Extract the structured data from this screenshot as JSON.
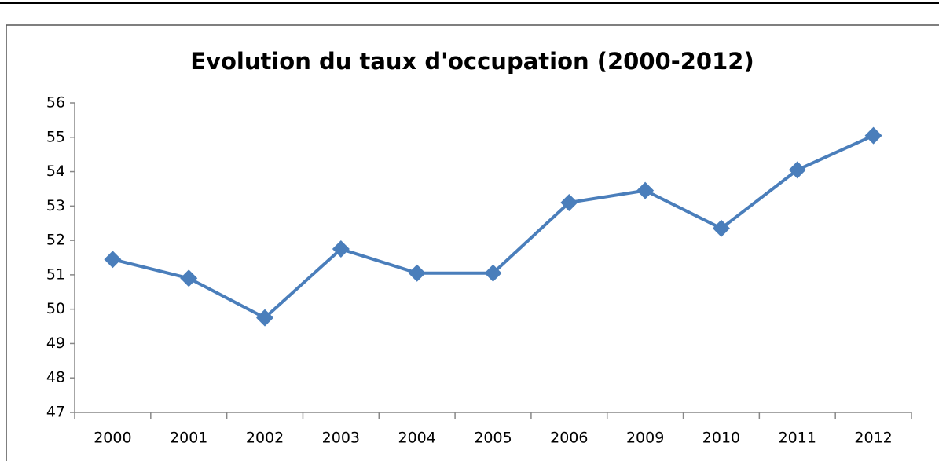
{
  "chart_data": {
    "type": "line",
    "title": "Evolution du taux d'occupation (2000-2012)",
    "categories": [
      "2000",
      "2001",
      "2002",
      "2003",
      "2004",
      "2005",
      "2006",
      "2009",
      "2010",
      "2011",
      "2012"
    ],
    "values": [
      51.45,
      50.9,
      49.75,
      51.75,
      51.05,
      51.05,
      53.1,
      53.45,
      52.35,
      54.05,
      55.05
    ],
    "color": "#4a7ebb",
    "ylim": [
      47,
      56
    ],
    "yticks": [
      47,
      48,
      49,
      50,
      51,
      52,
      53,
      54,
      55,
      56
    ],
    "grid": false
  }
}
